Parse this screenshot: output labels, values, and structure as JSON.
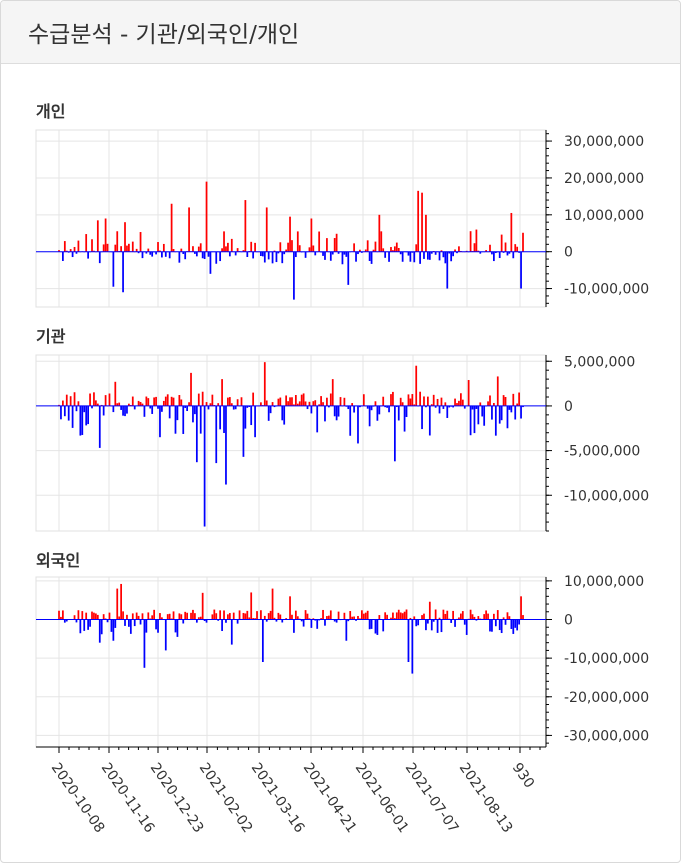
{
  "header": {
    "title": "수급분석 - 기관/외국인/개인"
  },
  "colors": {
    "positive": "#ff0000",
    "negative": "#0000ff",
    "grid": "#e5e5e5",
    "axis": "#000000"
  },
  "chart_data": [
    {
      "type": "bar",
      "title": "개인",
      "ylim": [
        -15000000,
        33000000
      ],
      "yticks": [
        30000000,
        20000000,
        10000000,
        0,
        -10000000
      ],
      "ytick_labels": [
        "30,000,000",
        "20,000,000",
        "10,000,000",
        "0",
        "-10,000,000"
      ],
      "grid": true,
      "values": []
    },
    {
      "type": "bar",
      "title": "기관",
      "ylim": [
        -14000000,
        5700000
      ],
      "yticks": [
        5000000,
        0,
        -5000000,
        -10000000
      ],
      "ytick_labels": [
        "5,000,000",
        "0",
        "-5,000,000",
        "-10,000,000"
      ],
      "grid": true,
      "values": []
    },
    {
      "type": "bar",
      "title": "외국인",
      "ylim": [
        -33000000,
        11000000
      ],
      "yticks": [
        10000000,
        0,
        -10000000,
        -20000000,
        -30000000
      ],
      "ytick_labels": [
        "10,000,000",
        "0",
        "-10,000,000",
        "-20,000,000",
        "-30,000,000"
      ],
      "grid": true,
      "x_dates": [
        "2020-10-08",
        "2020-11-16",
        "2020-12-23",
        "2021-02-02",
        "2021-03-16",
        "2021-04-21",
        "2021-06-01",
        "2021-07-07",
        "2021-08-13",
        "930"
      ],
      "values": []
    }
  ]
}
